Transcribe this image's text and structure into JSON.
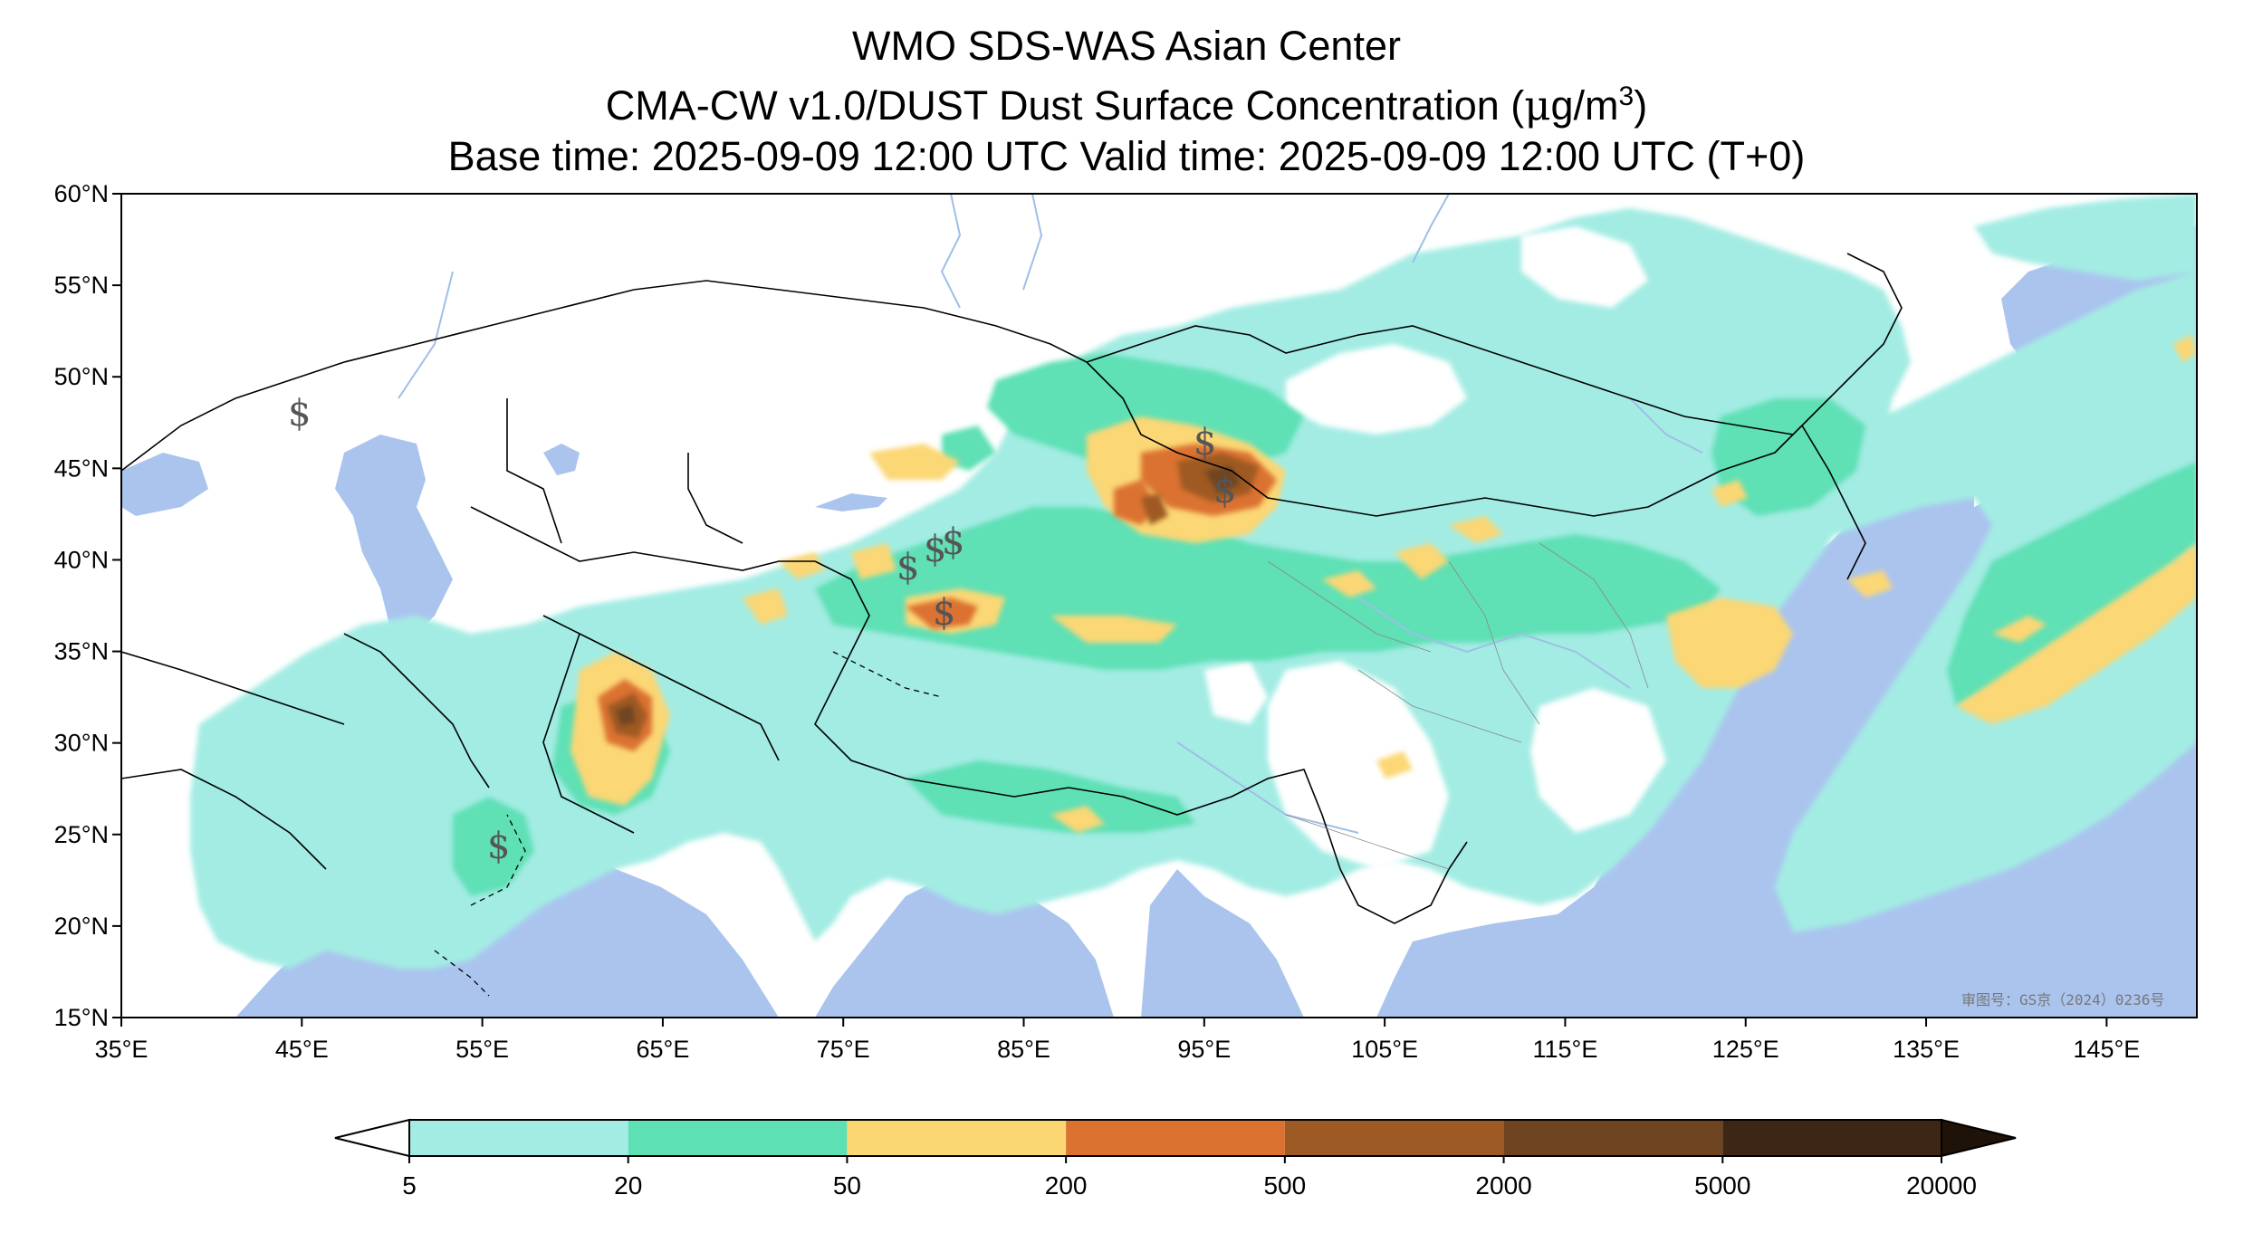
{
  "title": {
    "line1": "WMO SDS-WAS Asian Center",
    "line2_prefix": "CMA-CW v1.0/DUST Dust Surface Concentration (",
    "line2_mu": "μ",
    "line2_unit": "g/m",
    "line2_sup": "3",
    "line2_suffix": ")",
    "line3": "Base time: 2025-09-09 12:00 UTC Valid time: 2025-09-09 12:00 UTC (T+0)"
  },
  "map": {
    "lon_range": [
      35,
      150
    ],
    "lat_range": [
      15,
      60
    ],
    "lat_ticks": [
      {
        "value": 60,
        "label": "60°N"
      },
      {
        "value": 55,
        "label": "55°N"
      },
      {
        "value": 50,
        "label": "50°N"
      },
      {
        "value": 45,
        "label": "45°N"
      },
      {
        "value": 40,
        "label": "40°N"
      },
      {
        "value": 35,
        "label": "35°N"
      },
      {
        "value": 30,
        "label": "30°N"
      },
      {
        "value": 25,
        "label": "25°N"
      },
      {
        "value": 20,
        "label": "20°N"
      },
      {
        "value": 15,
        "label": "15°N"
      }
    ],
    "lon_ticks": [
      {
        "value": 35,
        "label": "35°E"
      },
      {
        "value": 45,
        "label": "45°E"
      },
      {
        "value": 55,
        "label": "55°E"
      },
      {
        "value": 65,
        "label": "65°E"
      },
      {
        "value": 75,
        "label": "75°E"
      },
      {
        "value": 85,
        "label": "85°E"
      },
      {
        "value": 95,
        "label": "95°E"
      },
      {
        "value": 105,
        "label": "105°E"
      },
      {
        "value": 115,
        "label": "115°E"
      },
      {
        "value": 125,
        "label": "125°E"
      },
      {
        "value": 135,
        "label": "135°E"
      },
      {
        "value": 145,
        "label": "145°E"
      }
    ],
    "colors": {
      "water": "#aac4ee",
      "land": "#ffffff",
      "border": "#000000",
      "river": "#9fbfe6"
    },
    "watermark": "审图号：GS京（2024）0236号",
    "dust_symbol": "$"
  },
  "colorbar": {
    "levels": [
      {
        "label": "5",
        "color": "#a3ece3"
      },
      {
        "label": "20",
        "color": "#5ee0b5"
      },
      {
        "label": "50",
        "color": "#fbd774"
      },
      {
        "label": "200",
        "color": "#db7230"
      },
      {
        "label": "500",
        "color": "#9e5a24"
      },
      {
        "label": "2000",
        "color": "#6f4420"
      },
      {
        "label": "5000",
        "color": "#3e2614"
      },
      {
        "label": "20000",
        "color": ""
      }
    ],
    "under_color": "#ffffff",
    "over_color": "#1f1208"
  }
}
